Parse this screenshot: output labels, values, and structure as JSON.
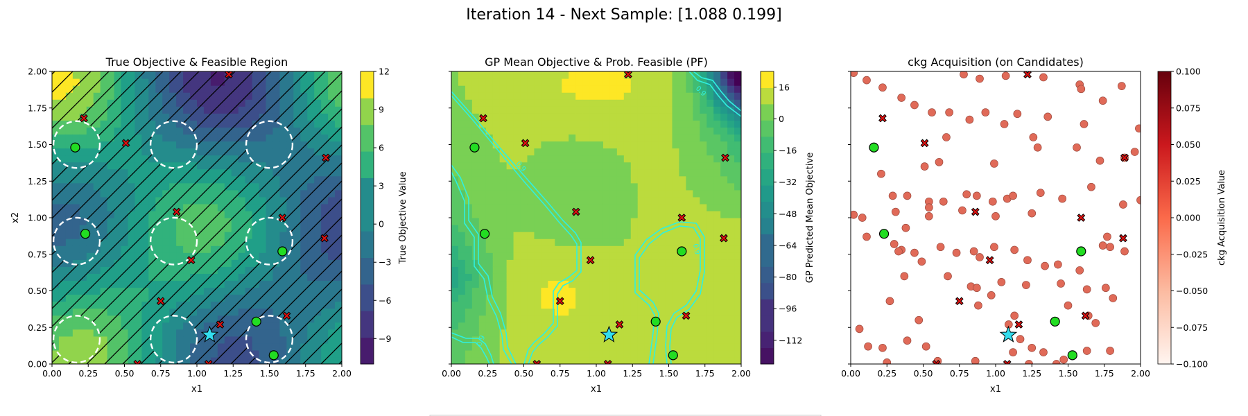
{
  "figure": {
    "suptitle": "Iteration 14 - Next Sample: [1.088 0.199]"
  },
  "colors": {
    "feasible": "#22dd22",
    "infeasible": "#dd1111",
    "next_sample": "#33ddee",
    "pf_contour": "#2ff0e0",
    "candidate": "#e06a58"
  },
  "chart_data": [
    {
      "type": "heatmap",
      "panel": "true-objective",
      "title": "True Objective & Feasible Region",
      "xlabel": "x1",
      "ylabel": "x2",
      "xlim": [
        0,
        2
      ],
      "ylim": [
        0,
        2
      ],
      "xticks": [
        "0.00",
        "0.25",
        "0.50",
        "0.75",
        "1.00",
        "1.25",
        "1.50",
        "1.75",
        "2.00"
      ],
      "yticks": [
        "0.00",
        "0.25",
        "0.50",
        "0.75",
        "1.00",
        "1.25",
        "1.50",
        "1.75",
        "2.00"
      ],
      "colorbar": {
        "label": "True Objective Value",
        "colormap": "viridis",
        "range": [
          -11,
          12
        ],
        "ticks": [
          "12",
          "9",
          "6",
          "3",
          "0",
          "−3",
          "−6",
          "−9"
        ],
        "tick_values": [
          12,
          9,
          6,
          3,
          0,
          -3,
          -6,
          -9
        ]
      },
      "feasible_regions": [
        {
          "cx": 0.17,
          "cy": 1.5,
          "r": 0.16
        },
        {
          "cx": 0.84,
          "cy": 1.5,
          "r": 0.16
        },
        {
          "cx": 1.5,
          "cy": 1.5,
          "r": 0.16
        },
        {
          "cx": 0.17,
          "cy": 0.84,
          "r": 0.16
        },
        {
          "cx": 0.84,
          "cy": 0.84,
          "r": 0.16
        },
        {
          "cx": 1.5,
          "cy": 0.84,
          "r": 0.16
        },
        {
          "cx": 0.17,
          "cy": 0.17,
          "r": 0.16
        },
        {
          "cx": 0.84,
          "cy": 0.17,
          "r": 0.16
        },
        {
          "cx": 1.5,
          "cy": 0.17,
          "r": 0.16
        }
      ]
    },
    {
      "type": "heatmap",
      "panel": "gp-mean",
      "title": "GP Mean Objective & Prob. Feasible (PF)",
      "xlabel": "x1",
      "xlim": [
        0,
        2
      ],
      "ylim": [
        0,
        2
      ],
      "xticks": [
        "0.00",
        "0.25",
        "0.50",
        "0.75",
        "1.00",
        "1.25",
        "1.50",
        "1.75",
        "2.00"
      ],
      "colorbar": {
        "label": "GP Predicted Mean Objective",
        "colormap": "viridis",
        "range": [
          -124,
          24
        ],
        "ticks": [
          "16",
          "0",
          "−16",
          "−32",
          "−48",
          "−64",
          "−80",
          "−96",
          "−112"
        ],
        "tick_values": [
          16,
          0,
          -16,
          -32,
          -48,
          -64,
          -80,
          -96,
          -112
        ]
      },
      "pf_contour_labels": [
        "0.9",
        "0.9",
        "0.9",
        "0.9"
      ]
    },
    {
      "type": "scatter",
      "panel": "acquisition",
      "title": "ckg Acquisition (on Candidates)",
      "xlabel": "x1",
      "xlim": [
        0,
        2
      ],
      "ylim": [
        0,
        2
      ],
      "xticks": [
        "0.00",
        "0.25",
        "0.50",
        "0.75",
        "1.00",
        "1.25",
        "1.50",
        "1.75",
        "2.00"
      ],
      "colorbar": {
        "label": "ckg Acquisition Value",
        "colormap": "Reds",
        "range": [
          -0.1,
          0.1
        ],
        "ticks": [
          "0.100",
          "0.075",
          "0.050",
          "0.025",
          "0.000",
          "−0.025",
          "−0.050",
          "−0.075",
          "−0.100"
        ],
        "tick_values": [
          0.1,
          0.075,
          0.05,
          0.025,
          0,
          -0.025,
          -0.05,
          -0.075,
          -0.1
        ]
      },
      "candidates": [
        [
          0.02,
          1.99
        ],
        [
          0.11,
          1.94
        ],
        [
          0.22,
          1.89
        ],
        [
          0.35,
          1.82
        ],
        [
          0.44,
          1.77
        ],
        [
          0.56,
          1.72
        ],
        [
          0.68,
          1.72
        ],
        [
          0.78,
          1.98
        ],
        [
          0.89,
          1.95
        ],
        [
          1.07,
          1.97
        ],
        [
          1.33,
          1.96
        ],
        [
          1.58,
          1.91
        ],
        [
          1.59,
          1.88
        ],
        [
          1.74,
          1.8
        ],
        [
          1.87,
          1.9
        ],
        [
          1.15,
          1.71
        ],
        [
          1.36,
          1.69
        ],
        [
          1.61,
          1.64
        ],
        [
          1.99,
          1.61
        ],
        [
          0.66,
          1.55
        ],
        [
          0.82,
          1.67
        ],
        [
          0.93,
          1.72
        ],
        [
          1.06,
          1.64
        ],
        [
          1.26,
          1.55
        ],
        [
          1.29,
          1.48
        ],
        [
          1.56,
          1.48
        ],
        [
          1.72,
          1.39
        ],
        [
          1.89,
          1.41
        ],
        [
          1.96,
          1.45
        ],
        [
          0.51,
          1.35
        ],
        [
          0.61,
          1.38
        ],
        [
          0.99,
          1.37
        ],
        [
          0.21,
          1.3
        ],
        [
          0.02,
          1.02
        ],
        [
          0.08,
          1.0
        ],
        [
          0.29,
          1.15
        ],
        [
          0.39,
          1.15
        ],
        [
          0.54,
          1.11
        ],
        [
          0.64,
          1.11
        ],
        [
          0.8,
          1.16
        ],
        [
          0.87,
          1.15
        ],
        [
          0.98,
          1.11
        ],
        [
          1.08,
          1.13
        ],
        [
          1.12,
          1.15
        ],
        [
          1.25,
          1.03
        ],
        [
          1.31,
          1.17
        ],
        [
          1.46,
          1.13
        ],
        [
          1.66,
          1.21
        ],
        [
          1.88,
          1.09
        ],
        [
          2.0,
          1.12
        ],
        [
          0.31,
          1.04
        ],
        [
          0.54,
          1.07
        ],
        [
          0.77,
          1.05
        ],
        [
          1.0,
          1.01
        ],
        [
          0.38,
          0.93
        ],
        [
          0.54,
          1.01
        ],
        [
          0.11,
          0.87
        ],
        [
          0.3,
          0.82
        ],
        [
          0.35,
          0.78
        ],
        [
          0.44,
          0.76
        ],
        [
          0.33,
          0.77
        ],
        [
          0.49,
          0.7
        ],
        [
          0.62,
          0.8
        ],
        [
          0.73,
          0.76
        ],
        [
          0.85,
          0.77
        ],
        [
          0.89,
          0.73
        ],
        [
          0.99,
          0.8
        ],
        [
          1.13,
          0.78
        ],
        [
          1.22,
          0.71
        ],
        [
          1.34,
          0.67
        ],
        [
          1.43,
          0.68
        ],
        [
          1.58,
          0.64
        ],
        [
          1.74,
          0.81
        ],
        [
          1.79,
          0.8
        ],
        [
          1.77,
          0.87
        ],
        [
          1.89,
          0.77
        ],
        [
          0.37,
          0.6
        ],
        [
          0.67,
          0.6
        ],
        [
          0.83,
          0.53
        ],
        [
          0.87,
          0.52
        ],
        [
          0.97,
          0.47
        ],
        [
          1.04,
          0.56
        ],
        [
          1.21,
          0.54
        ],
        [
          1.45,
          0.55
        ],
        [
          1.63,
          0.51
        ],
        [
          1.76,
          0.52
        ],
        [
          1.81,
          0.45
        ],
        [
          0.27,
          0.43
        ],
        [
          0.47,
          0.3
        ],
        [
          0.88,
          0.4
        ],
        [
          1.13,
          0.33
        ],
        [
          1.5,
          0.4
        ],
        [
          1.64,
          0.33
        ],
        [
          1.69,
          0.28
        ],
        [
          0.06,
          0.24
        ],
        [
          0.12,
          0.12
        ],
        [
          0.22,
          0.11
        ],
        [
          0.39,
          0.16
        ],
        [
          0.52,
          0.12
        ],
        [
          1.09,
          0.27
        ],
        [
          1.12,
          0.08
        ],
        [
          1.17,
          0.17
        ],
        [
          1.25,
          0.11
        ],
        [
          1.33,
          0.08
        ],
        [
          1.47,
          0.03
        ],
        [
          1.63,
          0.09
        ],
        [
          1.79,
          0.09
        ],
        [
          0.25,
          0.01
        ],
        [
          0.6,
          0.02
        ],
        [
          0.86,
          0.02
        ],
        [
          1.23,
          0.0
        ],
        [
          1.42,
          0.0
        ]
      ]
    }
  ],
  "feasible_points": [
    [
      0.16,
      1.48
    ],
    [
      0.23,
      0.89
    ],
    [
      1.59,
      0.77
    ],
    [
      1.41,
      0.29
    ],
    [
      1.53,
      0.06
    ]
  ],
  "infeasible_points": [
    [
      0.22,
      1.68
    ],
    [
      0.51,
      1.51
    ],
    [
      0.86,
      1.04
    ],
    [
      0.96,
      0.71
    ],
    [
      1.22,
      1.98
    ],
    [
      1.59,
      1.0
    ],
    [
      1.88,
      0.86
    ],
    [
      1.89,
      1.41
    ],
    [
      0.75,
      0.43
    ],
    [
      1.16,
      0.27
    ],
    [
      1.62,
      0.33
    ],
    [
      0.59,
      0.0
    ],
    [
      1.08,
      0.0
    ]
  ],
  "next_sample": [
    1.088,
    0.199
  ]
}
